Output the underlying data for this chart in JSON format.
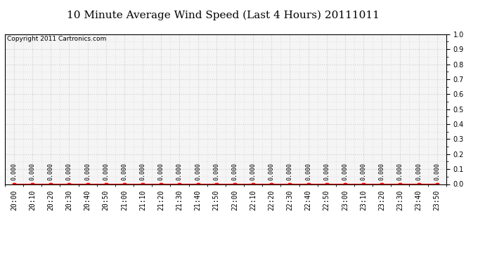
{
  "title": "10 Minute Average Wind Speed (Last 4 Hours) 20111011",
  "copyright_text": "Copyright 2011 Cartronics.com",
  "x_labels": [
    "20:00",
    "20:10",
    "20:20",
    "20:30",
    "20:40",
    "20:50",
    "21:00",
    "21:10",
    "21:20",
    "21:30",
    "21:40",
    "21:50",
    "22:00",
    "22:10",
    "22:20",
    "22:30",
    "22:40",
    "22:50",
    "23:00",
    "23:10",
    "23:20",
    "23:30",
    "23:40",
    "23:50"
  ],
  "y_values": [
    0.0,
    0.0,
    0.0,
    0.0,
    0.0,
    0.0,
    0.0,
    0.0,
    0.0,
    0.0,
    0.0,
    0.0,
    0.0,
    0.0,
    0.0,
    0.0,
    0.0,
    0.0,
    0.0,
    0.0,
    0.0,
    0.0,
    0.0,
    0.0
  ],
  "data_labels": [
    "0.000",
    "0.000",
    "0.000",
    "0.000",
    "0.000",
    "0.000",
    "0.000",
    "0.000",
    "0.000",
    "0.000",
    "0.000",
    "0.000",
    "0.000",
    "0.000",
    "0.000",
    "0.000",
    "0.000",
    "0.000",
    "0.000",
    "0.000",
    "0.000",
    "0.000",
    "0.000",
    "0.000"
  ],
  "ylim": [
    0.0,
    1.0
  ],
  "yticks": [
    0.0,
    0.1,
    0.2,
    0.3,
    0.4,
    0.5,
    0.6,
    0.7,
    0.8,
    0.9,
    1.0
  ],
  "line_color": "#ff0000",
  "marker_color": "#ff0000",
  "grid_color": "#cccccc",
  "bg_color": "#ffffff",
  "plot_bg_color": "#f5f5f5",
  "title_fontsize": 11,
  "tick_fontsize": 7,
  "copyright_fontsize": 6.5,
  "annotation_fontsize": 6
}
